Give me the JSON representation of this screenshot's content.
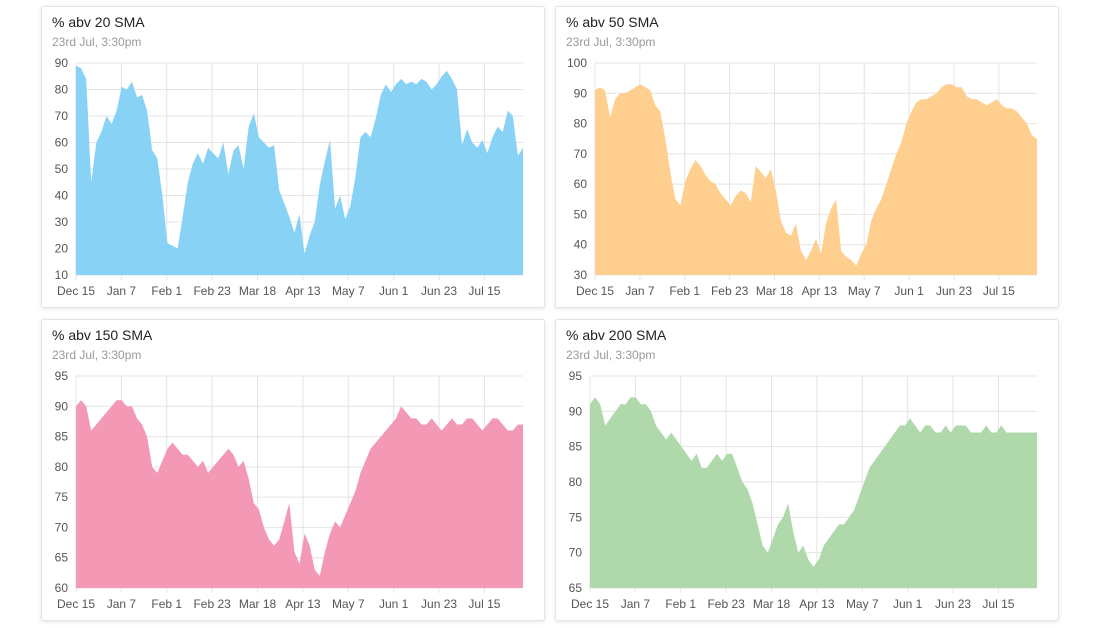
{
  "colors": {
    "sma20": "#88d2f6",
    "sma50": "#fecf8f",
    "sma150": "#f399b6",
    "sma200": "#afd9ab"
  },
  "charts": [
    {
      "title": "% abv 20 SMA",
      "subtitle": "23rd Jul, 3:30pm",
      "yticks": [
        "90",
        "80",
        "70",
        "60",
        "50",
        "40",
        "30",
        "20",
        "10"
      ],
      "xticks": [
        "Dec 15",
        "Jan 7",
        "Feb 1",
        "Feb 23",
        "Mar 18",
        "Apr 13",
        "May 7",
        "Jun 1",
        "Jun 23",
        "Jul 15"
      ]
    },
    {
      "title": "% abv 50 SMA",
      "subtitle": "23rd Jul, 3:30pm",
      "yticks": [
        "100",
        "90",
        "80",
        "70",
        "60",
        "50",
        "40",
        "30"
      ],
      "xticks": [
        "Dec 15",
        "Jan 7",
        "Feb 1",
        "Feb 23",
        "Mar 18",
        "Apr 13",
        "May 7",
        "Jun 1",
        "Jun 23",
        "Jul 15"
      ]
    },
    {
      "title": "% abv 150 SMA",
      "subtitle": "23rd Jul, 3:30pm",
      "yticks": [
        "95",
        "90",
        "85",
        "80",
        "75",
        "70",
        "65",
        "60"
      ],
      "xticks": [
        "Dec 15",
        "Jan 7",
        "Feb 1",
        "Feb 23",
        "Mar 18",
        "Apr 13",
        "May 7",
        "Jun 1",
        "Jun 23",
        "Jul 15"
      ]
    },
    {
      "title": "% abv 200 SMA",
      "subtitle": "23rd Jul, 3:30pm",
      "yticks": [
        "95",
        "90",
        "85",
        "80",
        "75",
        "70",
        "65"
      ],
      "xticks": [
        "Dec 15",
        "Jan 7",
        "Feb 1",
        "Feb 23",
        "Mar 18",
        "Apr 13",
        "May 7",
        "Jun 1",
        "Jun 23",
        "Jul 15"
      ]
    }
  ],
  "chart_data": [
    {
      "type": "area",
      "title": "% abv 20 SMA",
      "color": "#88d2f6",
      "ylim": [
        10,
        90
      ],
      "x_start": "Dec 15",
      "x_end": "Jul 23",
      "values": [
        89,
        88,
        84,
        45,
        60,
        64,
        70,
        67,
        72,
        81,
        80,
        83,
        77,
        78,
        72,
        57,
        54,
        40,
        22,
        21,
        20,
        32,
        45,
        52,
        56,
        52,
        58,
        56,
        54,
        60,
        48,
        57,
        59,
        50,
        66,
        71,
        62,
        60,
        58,
        59,
        42,
        37,
        32,
        26,
        33,
        18,
        25,
        30,
        44,
        53,
        61,
        35,
        40,
        31,
        36,
        47,
        62,
        64,
        62,
        69,
        78,
        82,
        79,
        82,
        84,
        82,
        83,
        82,
        84,
        83,
        80,
        82,
        85,
        87,
        84,
        80,
        59,
        65,
        60,
        58,
        61,
        56,
        62,
        66,
        64,
        72,
        70,
        55,
        58
      ],
      "grid": true
    },
    {
      "type": "area",
      "title": "% abv 50 SMA",
      "color": "#fecf8f",
      "ylim": [
        30,
        100
      ],
      "x_start": "Dec 15",
      "x_end": "Jul 23",
      "values": [
        91,
        92,
        91,
        82,
        88,
        90,
        90,
        91,
        92,
        93,
        92,
        91,
        86,
        84,
        75,
        64,
        55,
        53,
        61,
        65,
        68,
        66,
        63,
        61,
        60,
        57,
        55,
        53,
        56,
        58,
        57,
        54,
        66,
        64,
        62,
        65,
        58,
        48,
        44,
        43,
        47,
        38,
        35,
        38,
        42,
        37,
        47,
        52,
        55,
        38,
        36,
        35,
        33,
        37,
        40,
        48,
        52,
        55,
        60,
        65,
        70,
        74,
        80,
        84,
        87,
        88,
        88,
        89,
        90,
        92,
        93,
        93,
        92,
        92,
        89,
        88,
        88,
        87,
        86,
        87,
        88,
        86,
        85,
        85,
        84,
        82,
        80,
        76,
        75
      ],
      "grid": true
    },
    {
      "type": "area",
      "title": "% abv 150 SMA",
      "color": "#f399b6",
      "ylim": [
        60,
        95
      ],
      "x_start": "Dec 15",
      "x_end": "Jul 23",
      "values": [
        90,
        91,
        90,
        86,
        87,
        88,
        89,
        90,
        91,
        91,
        90,
        90,
        88,
        87,
        85,
        80,
        79,
        81,
        83,
        84,
        83,
        82,
        82,
        81,
        80,
        81,
        79,
        80,
        81,
        82,
        83,
        82,
        80,
        81,
        78,
        74,
        73,
        70,
        68,
        67,
        68,
        71,
        74,
        66,
        64,
        69,
        67,
        63,
        62,
        66,
        69,
        71,
        70,
        72,
        74,
        76,
        79,
        81,
        83,
        84,
        85,
        86,
        87,
        88,
        90,
        89,
        88,
        88,
        87,
        87,
        88,
        87,
        86,
        87,
        88,
        87,
        87,
        88,
        88,
        87,
        86,
        87,
        88,
        88,
        87,
        86,
        86,
        87,
        87
      ],
      "grid": true
    },
    {
      "type": "area",
      "title": "% abv 200 SMA",
      "color": "#afd9ab",
      "ylim": [
        65,
        95
      ],
      "x_start": "Dec 15",
      "x_end": "Jul 23",
      "values": [
        91,
        92,
        91,
        88,
        89,
        90,
        91,
        91,
        92,
        92,
        91,
        91,
        90,
        88,
        87,
        86,
        87,
        86,
        85,
        84,
        83,
        84,
        82,
        82,
        83,
        84,
        83,
        84,
        84,
        82,
        80,
        79,
        77,
        74,
        71,
        70,
        72,
        74,
        75,
        77,
        73,
        70,
        71,
        69,
        68,
        69,
        71,
        72,
        73,
        74,
        74,
        75,
        76,
        78,
        80,
        82,
        83,
        84,
        85,
        86,
        87,
        88,
        88,
        89,
        88,
        87,
        88,
        88,
        87,
        87,
        88,
        87,
        88,
        88,
        88,
        87,
        87,
        87,
        88,
        87,
        87,
        88,
        87,
        87,
        87,
        87,
        87,
        87,
        87
      ],
      "grid": true
    }
  ]
}
